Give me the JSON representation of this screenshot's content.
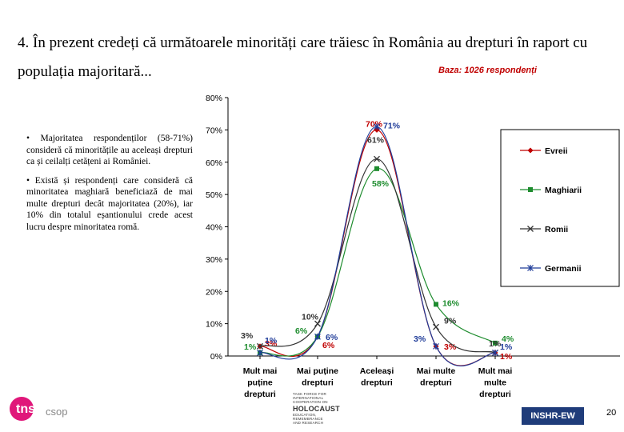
{
  "slide": {
    "title": "4. În prezent credeți că următoarele minorități care trăiesc în România au drepturi în raport cu populația majoritară...",
    "base": "Baza: 1026 respondenți",
    "bullets": [
      "• Majoritatea respondenților (58-71%) consideră că minoritățile au aceleași drepturi ca și ceilalți cetățeni ai României.",
      "• Există și respondenți care consideră că minoritatea maghiară beneficiază de mai multe drepturi decât majoritatea (20%), iar 10% din totalul eșantionului crede acest lucru despre minoritatea romă."
    ],
    "page_number": "20",
    "footer_badge": "INSHR-EW",
    "logo_tns_a": "tns",
    "logo_tns_b": "csop",
    "logo_holocaust": [
      "TASK FORCE FOR",
      "INTERNATIONAL",
      "COOPERATION ON",
      "HOLOCAUST",
      "EDUCATION,",
      "REMEMBRANCE",
      "AND RESEARCH"
    ]
  },
  "chart_data": {
    "type": "line",
    "categories": [
      [
        "Mult mai",
        "puține",
        "drepturi"
      ],
      [
        "Mai puține",
        "drepturi"
      ],
      [
        "Aceleași",
        "drepturi"
      ],
      [
        "Mai multe",
        "drepturi"
      ],
      [
        "Mult mai",
        "multe",
        "drepturi"
      ]
    ],
    "ylim": [
      0,
      80
    ],
    "yticks": [
      "0%",
      "10%",
      "20%",
      "30%",
      "40%",
      "50%",
      "60%",
      "70%",
      "80%"
    ],
    "legend_position": "right",
    "smooth": true,
    "series": [
      {
        "name": "Evreii",
        "color": "#c00000",
        "marker": "diamond",
        "values": [
          3,
          6,
          70,
          3,
          1
        ],
        "labels": [
          "3%",
          "6%",
          "70%",
          "3%",
          "1%"
        ]
      },
      {
        "name": "Maghiarii",
        "color": "#1e8c2e",
        "marker": "square",
        "values": [
          1,
          6,
          58,
          16,
          4
        ],
        "labels": [
          "1%",
          "6%",
          "58%",
          "16%",
          "4%"
        ]
      },
      {
        "name": "Romii",
        "color": "#333333",
        "marker": "x",
        "values": [
          3,
          10,
          61,
          9,
          1
        ],
        "labels": [
          "3%",
          "10%",
          "61%",
          "9%",
          "1%"
        ]
      },
      {
        "name": "Germanii",
        "color": "#1f3c99",
        "marker": "star",
        "values": [
          1,
          6,
          71,
          3,
          1
        ],
        "labels": [
          "1%",
          "6%",
          "71%",
          "3%",
          "1%"
        ]
      }
    ]
  }
}
